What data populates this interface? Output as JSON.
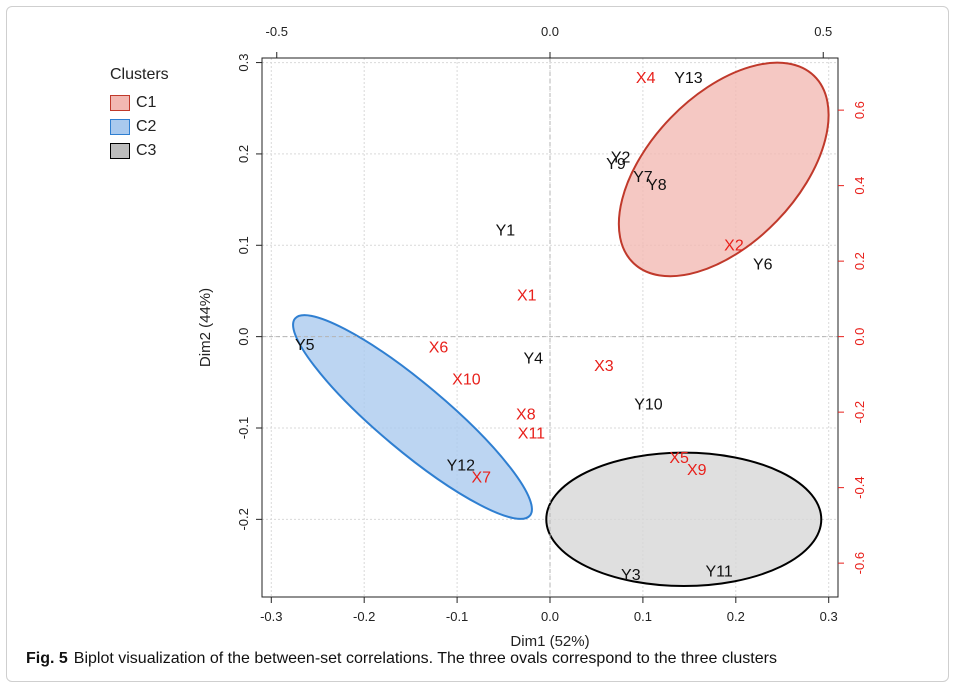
{
  "chart_data": {
    "type": "scatter",
    "xlabel": "Dim1 (52%)",
    "ylabel": "Dim2 (44%)",
    "xlim": [
      -0.31,
      0.31
    ],
    "ylim": [
      -0.285,
      0.305
    ],
    "x_ticks": [
      -0.3,
      -0.2,
      -0.1,
      0.0,
      0.1,
      0.2,
      0.3
    ],
    "x_tick_labels": [
      "-0.3",
      "-0.2",
      "-0.1",
      "0.0",
      "0.1",
      "0.2",
      "0.3"
    ],
    "y_ticks": [
      -0.2,
      -0.1,
      0.0,
      0.1,
      0.2,
      0.3
    ],
    "y_tick_labels": [
      "-0.2",
      "-0.1",
      "0.0",
      "0.1",
      "0.2",
      "0.3"
    ],
    "top_axis": {
      "ticks": [
        -0.5,
        0.0,
        0.5
      ],
      "tick_labels": [
        "-0.5",
        "0.0",
        "0.5"
      ],
      "scale": 1.7
    },
    "right_axis": {
      "ticks": [
        -0.6,
        -0.4,
        -0.2,
        0.0,
        0.2,
        0.4,
        0.6
      ],
      "tick_labels": [
        "-0.6",
        "-0.4",
        "-0.2",
        "0.0",
        "0.2",
        "0.4",
        "0.6"
      ],
      "scale": 2.42
    },
    "grid": true,
    "reference_lines": [
      {
        "axis": "x",
        "value": 0
      },
      {
        "axis": "y",
        "value": 0
      }
    ],
    "legend": {
      "title": "Clusters",
      "placement": "outside-top-left",
      "entries": [
        {
          "label": "C1",
          "fill": "#f2b8b2",
          "stroke": "#c0392b"
        },
        {
          "label": "C2",
          "fill": "#a9c9ee",
          "stroke": "#2f7fd1"
        },
        {
          "label": "C3",
          "fill": "#bdbdbd",
          "stroke": "#000000"
        }
      ]
    },
    "clusters": [
      {
        "name": "C1",
        "cx": 0.187,
        "cy": 0.183,
        "rx": 0.14,
        "ry": 0.081,
        "angle_deg": 46,
        "fill": "#f2b8b2",
        "stroke": "#c0392b"
      },
      {
        "name": "C2",
        "cx": -0.148,
        "cy": -0.088,
        "rx": 0.165,
        "ry": 0.037,
        "angle_deg": -40,
        "fill": "#a9c9ee",
        "stroke": "#2f7fd1"
      },
      {
        "name": "C3",
        "cx": 0.144,
        "cy": -0.2,
        "rx": 0.148,
        "ry": 0.073,
        "angle_deg": 0,
        "fill": "#d6d6d6",
        "stroke": "#000000"
      }
    ],
    "series": [
      {
        "name": "X",
        "color": "#e8201b",
        "points": [
          {
            "label": "X1",
            "x": -0.025,
            "y": 0.046
          },
          {
            "label": "X2",
            "x": 0.198,
            "y": 0.101
          },
          {
            "label": "X3",
            "x": 0.058,
            "y": -0.031
          },
          {
            "label": "X4",
            "x": 0.103,
            "y": 0.284
          },
          {
            "label": "X5",
            "x": 0.139,
            "y": -0.132
          },
          {
            "label": "X6",
            "x": -0.12,
            "y": -0.011
          },
          {
            "label": "X7",
            "x": -0.074,
            "y": -0.153
          },
          {
            "label": "X8",
            "x": -0.026,
            "y": -0.084
          },
          {
            "label": "X9",
            "x": 0.158,
            "y": -0.145
          },
          {
            "label": "X10",
            "x": -0.09,
            "y": -0.046
          },
          {
            "label": "X11",
            "x": -0.02,
            "y": -0.105
          }
        ]
      },
      {
        "name": "Y",
        "color": "#111111",
        "points": [
          {
            "label": "Y1",
            "x": -0.048,
            "y": 0.117
          },
          {
            "label": "Y2",
            "x": 0.076,
            "y": 0.197
          },
          {
            "label": "Y3",
            "x": 0.087,
            "y": -0.26
          },
          {
            "label": "Y4",
            "x": -0.018,
            "y": -0.023
          },
          {
            "label": "Y5",
            "x": -0.264,
            "y": -0.008
          },
          {
            "label": "Y6",
            "x": 0.229,
            "y": 0.08
          },
          {
            "label": "Y7",
            "x": 0.1,
            "y": 0.176
          },
          {
            "label": "Y8",
            "x": 0.115,
            "y": 0.167
          },
          {
            "label": "Y9",
            "x": 0.071,
            "y": 0.19
          },
          {
            "label": "Y10",
            "x": 0.106,
            "y": -0.073
          },
          {
            "label": "Y11",
            "x": 0.182,
            "y": -0.256
          },
          {
            "label": "Y12",
            "x": -0.096,
            "y": -0.14
          },
          {
            "label": "Y13",
            "x": 0.149,
            "y": 0.284
          }
        ]
      }
    ]
  },
  "caption": {
    "label": "Fig. 5",
    "text": "Biplot visualization of the between-set correlations. The three ovals correspond to the three clusters"
  }
}
